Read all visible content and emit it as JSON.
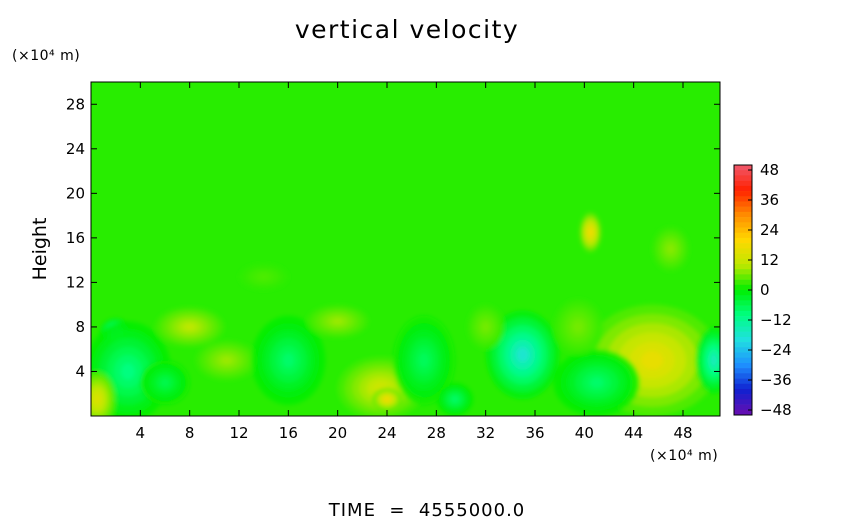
{
  "chart_data": {
    "type": "heatmap",
    "title": "vertical velocity",
    "xlabel": "",
    "ylabel": "Height",
    "x_units": "(×10⁴ m)",
    "y_units": "(×10⁴ m)",
    "footer": "TIME  =  4555000.0",
    "x_ticks": [
      "4",
      "8",
      "12",
      "16",
      "20",
      "24",
      "28",
      "32",
      "36",
      "40",
      "44",
      "48"
    ],
    "y_ticks": [
      "4",
      "8",
      "12",
      "16",
      "20",
      "24",
      "28"
    ],
    "xlim": [
      0,
      51
    ],
    "ylim": [
      0,
      30
    ],
    "colorbar_ticks": [
      "48",
      "36",
      "24",
      "12",
      "0",
      "−12",
      "−24",
      "−36",
      "−48"
    ],
    "value_range": [
      -48,
      48
    ],
    "colorscale": [
      "#6a0db0",
      "#1020d0",
      "#1e90ff",
      "#20e0e0",
      "#00ff80",
      "#00ee00",
      "#bfe800",
      "#ffd800",
      "#ff8c00",
      "#ff2000",
      "#f05a6e"
    ],
    "background_value": 2,
    "features": [
      {
        "x": 35.5,
        "y": 5,
        "rx": 1.5,
        "ry": 2.4,
        "value": -38
      },
      {
        "x": 35,
        "y": 5.5,
        "rx": 3,
        "ry": 4,
        "value": -18
      },
      {
        "x": 46,
        "y": 4,
        "rx": 2.5,
        "ry": 2.2,
        "value": 26
      },
      {
        "x": 45.5,
        "y": 5,
        "rx": 5.5,
        "ry": 5,
        "value": 16
      },
      {
        "x": 41,
        "y": 3,
        "rx": 3.5,
        "ry": 3,
        "value": -8
      },
      {
        "x": 50.5,
        "y": 5,
        "rx": 1.5,
        "ry": 3,
        "value": -16
      },
      {
        "x": 2,
        "y": 7.5,
        "rx": 1.3,
        "ry": 1.3,
        "value": -18
      },
      {
        "x": 3,
        "y": 4,
        "rx": 3.5,
        "ry": 4.5,
        "value": -10
      },
      {
        "x": 0.5,
        "y": 1.5,
        "rx": 1.5,
        "ry": 2.5,
        "value": 14
      },
      {
        "x": 8,
        "y": 8,
        "rx": 2.8,
        "ry": 1.8,
        "value": 10
      },
      {
        "x": 11,
        "y": 5,
        "rx": 2.5,
        "ry": 1.8,
        "value": 8
      },
      {
        "x": 16,
        "y": 5,
        "rx": 3,
        "ry": 4,
        "value": -8
      },
      {
        "x": 20,
        "y": 8.5,
        "rx": 2.5,
        "ry": 1.5,
        "value": 8
      },
      {
        "x": 23.5,
        "y": 2.5,
        "rx": 3.5,
        "ry": 2.8,
        "value": 12
      },
      {
        "x": 24,
        "y": 1.5,
        "rx": 1.2,
        "ry": 1,
        "value": 18
      },
      {
        "x": 27,
        "y": 5,
        "rx": 2.5,
        "ry": 4,
        "value": -7
      },
      {
        "x": 29.5,
        "y": 1.5,
        "rx": 1.5,
        "ry": 1.5,
        "value": -8
      },
      {
        "x": 32,
        "y": 8,
        "rx": 1.5,
        "ry": 2,
        "value": 6
      },
      {
        "x": 40.5,
        "y": 16.5,
        "rx": 0.9,
        "ry": 1.8,
        "value": 18
      },
      {
        "x": 39.5,
        "y": 8,
        "rx": 2,
        "ry": 2.5,
        "value": 6
      },
      {
        "x": 47,
        "y": 15,
        "rx": 1.5,
        "ry": 2,
        "value": 7
      },
      {
        "x": 14,
        "y": 12.5,
        "rx": 2,
        "ry": 1.2,
        "value": 4
      },
      {
        "x": 6,
        "y": 3,
        "rx": 2,
        "ry": 2,
        "value": -6
      }
    ]
  }
}
